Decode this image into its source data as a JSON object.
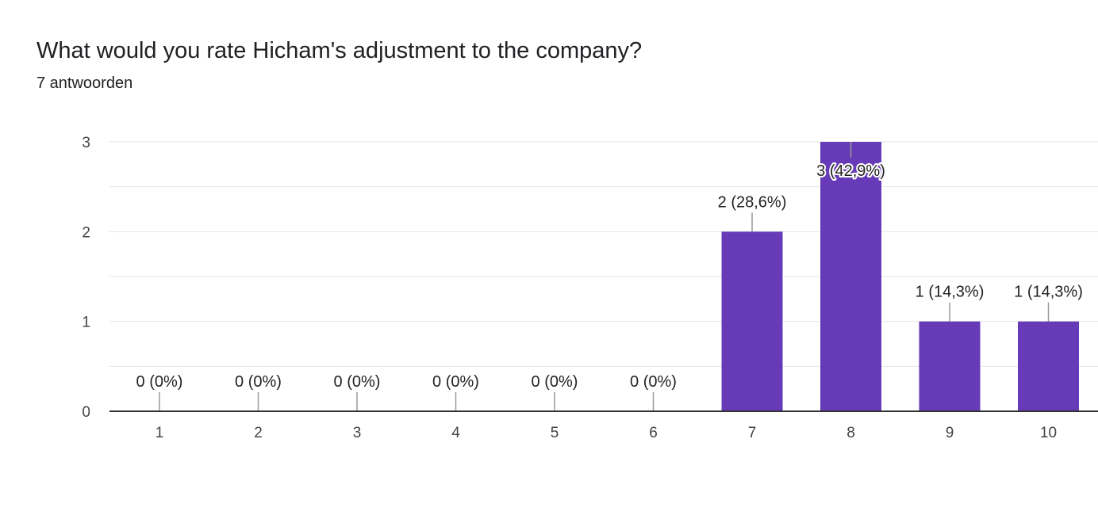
{
  "question": {
    "title": "What would you rate Hicham's adjustment to the company?",
    "response_count": "7 antwoorden"
  },
  "colors": {
    "bar": "#673AB7",
    "grid": "#e6e6e6",
    "baseline": "#333333",
    "leader": "#999999"
  },
  "chart_data": {
    "type": "bar",
    "categories": [
      "1",
      "2",
      "3",
      "4",
      "5",
      "6",
      "7",
      "8",
      "9",
      "10"
    ],
    "values": [
      0,
      0,
      0,
      0,
      0,
      0,
      2,
      3,
      1,
      1
    ],
    "data_labels": [
      "0 (0%)",
      "0 (0%)",
      "0 (0%)",
      "0 (0%)",
      "0 (0%)",
      "0 (0%)",
      "2 (28,6%)",
      "3 (42,9%)",
      "1 (14,3%)",
      "1 (14,3%)"
    ],
    "y_ticks": [
      "0",
      "1",
      "2",
      "3"
    ],
    "ylim": [
      0,
      3
    ],
    "minor_gridlines": true,
    "legend": "none"
  }
}
